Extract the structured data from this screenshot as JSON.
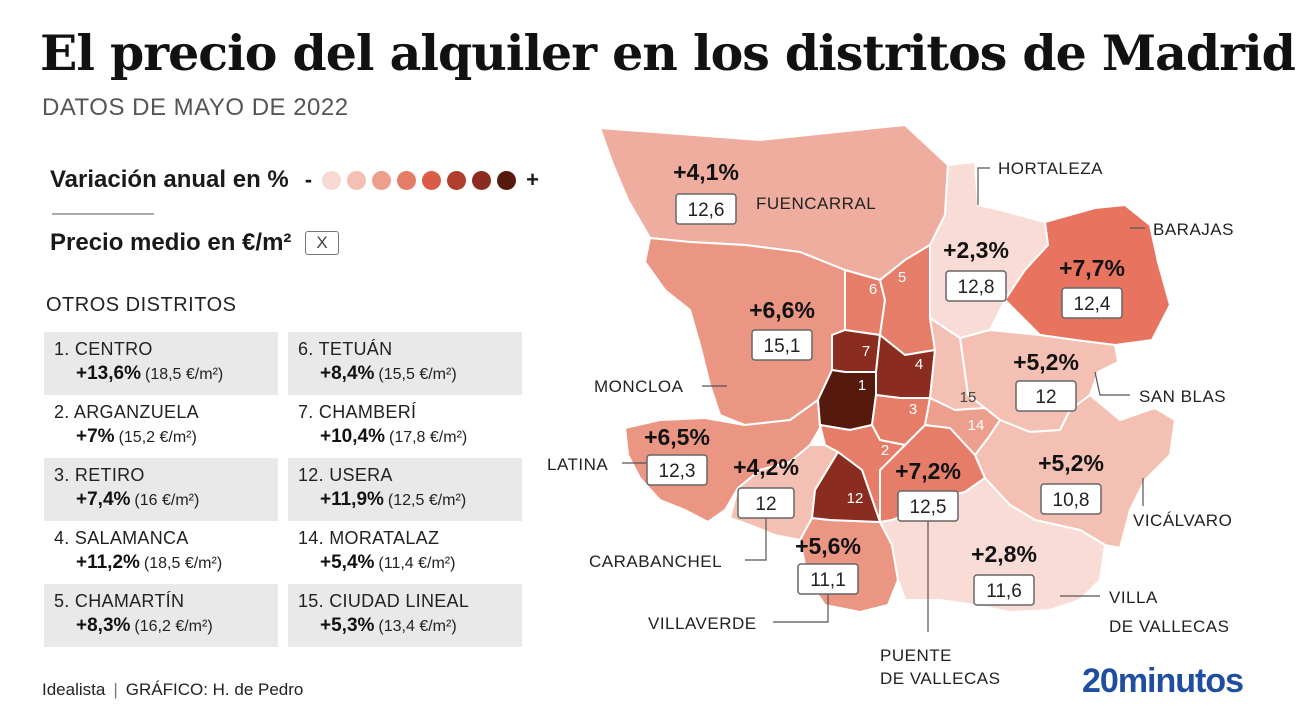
{
  "header": {
    "title": "El precio del alquiler en los distritos de Madrid",
    "subtitle": "DATOS DE MAYO DE 2022"
  },
  "legend": {
    "variation_label": "Variación anual en %",
    "minus": "-",
    "plus": "+",
    "scale_colors": [
      "#f7d9d2",
      "#f3c0b3",
      "#ec9f8c",
      "#e57d68",
      "#d95c49",
      "#b13d2c",
      "#8a2c1f",
      "#55190e"
    ],
    "price_label": "Precio medio en €/m²",
    "price_box": "X"
  },
  "others": {
    "title": "OTROS DISTRITOS",
    "items": [
      {
        "name": "1. CENTRO",
        "pct": "+13,6%",
        "price": "(18,5 €/m²)"
      },
      {
        "name": "6. TETUÁN",
        "pct": "+8,4%",
        "price": "(15,5 €/m²)"
      },
      {
        "name": "2. ARGANZUELA",
        "pct": "+7%",
        "price": "(15,2 €/m²)"
      },
      {
        "name": "7. CHAMBERÍ",
        "pct": "+10,4%",
        "price": "(17,8 €/m²)"
      },
      {
        "name": "3. RETIRO",
        "pct": "+7,4%",
        "price": "(16 €/m²)"
      },
      {
        "name": "12. USERA",
        "pct": "+11,9%",
        "price": "(12,5 €/m²)"
      },
      {
        "name": "4. SALAMANCA",
        "pct": "+11,2%",
        "price": "(18,5 €/m²)"
      },
      {
        "name": "14. MORATALAZ",
        "pct": "+5,4%",
        "price": "(11,4 €/m²)"
      },
      {
        "name": "5. CHAMARTÍN",
        "pct": "+8,3%",
        "price": "(16,2 €/m²)"
      },
      {
        "name": "15. CIUDAD LINEAL",
        "pct": "+5,3%",
        "price": "(13,4 €/m²)"
      }
    ]
  },
  "map": {
    "districts": [
      {
        "key": "fuencarral",
        "name": "FUENCARRAL",
        "pct": "+4,1%",
        "price": "12,6",
        "color": "#efada0"
      },
      {
        "key": "hortaleza",
        "name": "HORTALEZA",
        "pct": "+2,3%",
        "price": "12,8",
        "color": "#f8dcd5"
      },
      {
        "key": "barajas",
        "name": "BARAJAS",
        "pct": "+7,7%",
        "price": "12,4",
        "color": "#e8735f"
      },
      {
        "key": "moncloa",
        "name": "MONCLOA",
        "pct": "+6,6%",
        "price": "15,1",
        "color": "#eb9583"
      },
      {
        "key": "sanblas",
        "name": "SAN BLAS",
        "pct": "+5,2%",
        "price": "12",
        "color": "#f3c0b3"
      },
      {
        "key": "latina",
        "name": "LATINA",
        "pct": "+6,5%",
        "price": "12,3",
        "color": "#eb9583"
      },
      {
        "key": "carabanchel",
        "name": "CARABANCHEL",
        "pct": "+4,2%",
        "price": "12",
        "color": "#f3c0b3"
      },
      {
        "key": "puente",
        "name_line1": "PUENTE",
        "name_line2": "DE VALLECAS",
        "pct": "+7,2%",
        "price": "12,5",
        "color": "#e57d68"
      },
      {
        "key": "vicalvaro",
        "name": "VICÁLVARO",
        "pct": "+5,2%",
        "price": "10,8",
        "color": "#f3c0b3"
      },
      {
        "key": "villaverde",
        "name": "VILLAVERDE",
        "pct": "+5,6%",
        "price": "11,1",
        "color": "#eb9583"
      },
      {
        "key": "villavallecas",
        "name_line1": "VILLA",
        "name_line2": "DE VALLECAS",
        "pct": "+2,8%",
        "price": "11,6",
        "color": "#f8dcd5"
      }
    ],
    "others": [
      {
        "num": "1",
        "color": "#55190e"
      },
      {
        "num": "2",
        "color": "#e57d68"
      },
      {
        "num": "3",
        "color": "#e57d68"
      },
      {
        "num": "4",
        "color": "#8a2c1f"
      },
      {
        "num": "5",
        "color": "#e57d68"
      },
      {
        "num": "6",
        "color": "#e57d68"
      },
      {
        "num": "7",
        "color": "#8a2c1f"
      },
      {
        "num": "12",
        "color": "#8a2c1f"
      },
      {
        "num": "14",
        "color": "#ec9f8c"
      },
      {
        "num": "15",
        "color": "#f3c0b3"
      }
    ]
  },
  "footer": {
    "source": "Idealista",
    "separator": "|",
    "credit": "GRÁFICO: H. de Pedro",
    "logo": "20minutos"
  }
}
